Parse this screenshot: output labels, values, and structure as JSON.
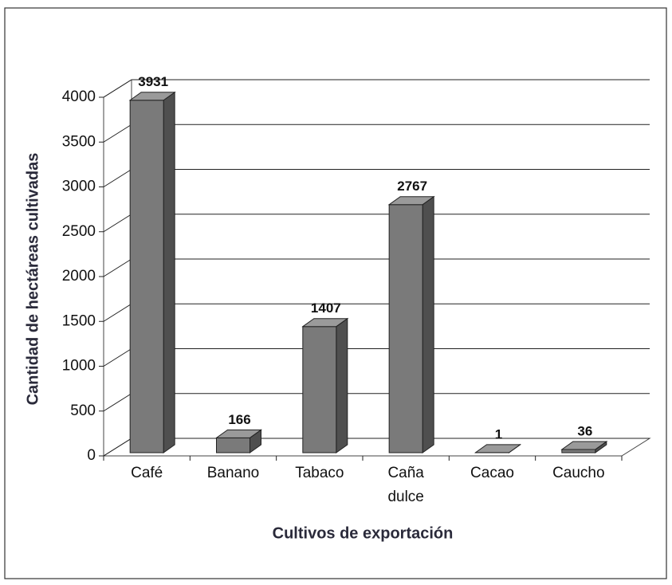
{
  "chart_data": {
    "type": "bar3d",
    "categories": [
      "Café",
      "Banano",
      "Tabaco",
      "Caña dulce",
      "Cacao",
      "Caucho"
    ],
    "values": [
      3931,
      166,
      1407,
      2767,
      1,
      36
    ],
    "color": "#7a7a7a",
    "ylim": [
      0,
      4000
    ],
    "yticks": [
      0,
      500,
      1000,
      1500,
      2000,
      2500,
      3000,
      3500,
      4000
    ],
    "grid": true,
    "y_label": "Cantidad de hectáreas cultivadas",
    "x_label": "Cultivos de exportación"
  }
}
